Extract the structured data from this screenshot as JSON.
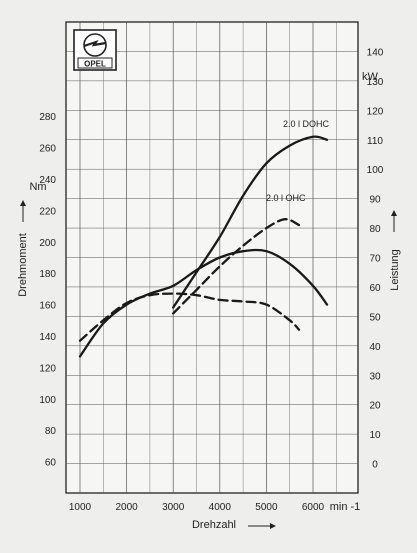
{
  "chart_data": {
    "type": "line",
    "xlabel": "Drehzahl",
    "xunit": "min -1",
    "ylabel_left": "Drehmoment",
    "ylabel_right": "Leistung",
    "left_unit": "Nm",
    "right_unit": "kW",
    "x_ticks": [
      1000,
      2000,
      3000,
      4000,
      5000,
      6000
    ],
    "xlim": [
      1000,
      6000
    ],
    "left_ticks": [
      60,
      80,
      100,
      120,
      140,
      160,
      180,
      200,
      220,
      240,
      260,
      280
    ],
    "left_ylim": [
      40,
      340
    ],
    "right_ticks": [
      0,
      10,
      20,
      30,
      40,
      50,
      60,
      70,
      80,
      90,
      100,
      110,
      120,
      130,
      140
    ],
    "right_ylim": [
      -10,
      150
    ],
    "grid": true,
    "logo_text": "OPEL",
    "series": [
      {
        "name": "2.0 l DOHC",
        "quantity": "Leistung",
        "axis": "right",
        "style": "solid",
        "x": [
          3000,
          3500,
          4000,
          4500,
          5000,
          5500,
          6000,
          6300
        ],
        "y": [
          53,
          65,
          77,
          91,
          102,
          108,
          111,
          110
        ]
      },
      {
        "name": "2.0 l OHC",
        "quantity": "Leistung",
        "axis": "right",
        "style": "dashed",
        "x": [
          3000,
          3500,
          4000,
          4500,
          5000,
          5400,
          5700
        ],
        "y": [
          51,
          59,
          67,
          74,
          80,
          83,
          81
        ]
      },
      {
        "name": "2.0 l DOHC",
        "quantity": "Drehmoment",
        "axis": "left",
        "style": "solid",
        "x": [
          1000,
          1500,
          2000,
          2500,
          3000,
          3500,
          4000,
          4500,
          5000,
          5500,
          6000,
          6300
        ],
        "y": [
          127,
          148,
          160,
          167,
          172,
          182,
          190,
          194,
          194,
          186,
          172,
          160
        ]
      },
      {
        "name": "2.0 l OHC",
        "quantity": "Drehmoment",
        "axis": "left",
        "style": "dashed",
        "x": [
          1000,
          1500,
          2000,
          2500,
          3000,
          3500,
          4000,
          4500,
          5000,
          5500,
          5700
        ],
        "y": [
          137,
          150,
          161,
          166,
          167,
          166,
          163,
          162,
          160,
          150,
          144
        ]
      }
    ]
  }
}
